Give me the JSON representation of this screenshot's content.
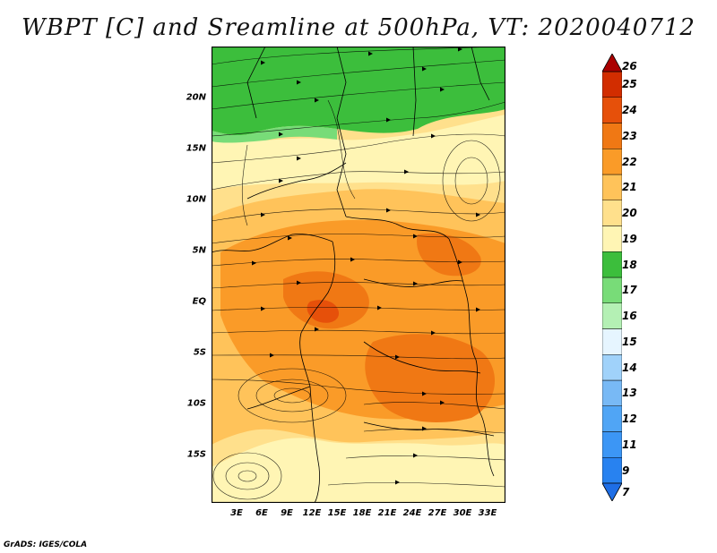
{
  "title": "WBPT [C] and Sreamline at 500hPa, VT: 2020040712",
  "credit": "GrADS: IGES/COLA",
  "map": {
    "lat_labels": [
      "20N",
      "15N",
      "10N",
      "5N",
      "EQ",
      "5S",
      "10S",
      "15S"
    ],
    "lon_labels": [
      "3E",
      "6E",
      "9E",
      "12E",
      "15E",
      "18E",
      "21E",
      "24E",
      "27E",
      "30E",
      "33E"
    ],
    "lat_range": [
      -20,
      24.5
    ],
    "lon_range": [
      0,
      35
    ]
  },
  "colorbar": {
    "labels": [
      "7",
      "9",
      "11",
      "12",
      "13",
      "14",
      "15",
      "16",
      "17",
      "18",
      "19",
      "20",
      "21",
      "22",
      "23",
      "24",
      "25",
      "26"
    ],
    "colors": [
      "#1e6ee6",
      "#2882f0",
      "#3c96f5",
      "#50a5f5",
      "#78b9f5",
      "#a0d2fa",
      "#e6f5ff",
      "#b4f0b4",
      "#78dc78",
      "#3cbe3c",
      "#fff5b4",
      "#ffe08c",
      "#ffc35a",
      "#fa9b28",
      "#f07814",
      "#e6500a",
      "#d22d00",
      "#aa0000"
    ]
  }
}
